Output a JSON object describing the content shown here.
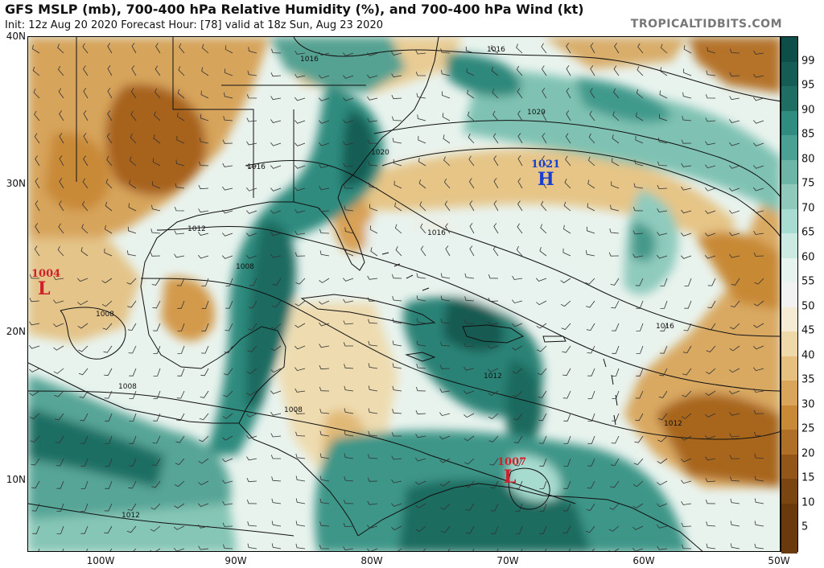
{
  "header": {
    "title": "GFS MSLP (mb), 700-400 hPa Relative Humidity (%), and 700-400 hPa Wind (kt)",
    "subtitle": "Init: 12z Aug 20 2020   Forecast Hour: [78]   valid at 18z Sun, Aug 23 2020",
    "brand": "TROPICALTIDBITS.COM"
  },
  "axes": {
    "lat_labels": [
      "40N",
      "30N",
      "20N",
      "10N"
    ],
    "lon_labels": [
      "100W",
      "90W",
      "80W",
      "70W",
      "60W",
      "50W"
    ]
  },
  "colorbar": {
    "labels": [
      "99",
      "95",
      "90",
      "85",
      "80",
      "75",
      "70",
      "65",
      "60",
      "55",
      "50",
      "45",
      "40",
      "35",
      "30",
      "25",
      "20",
      "15",
      "10",
      "5"
    ],
    "colors": {
      "moist_dark": "#0d4f48",
      "moist": "#2e8c80",
      "moist_light": "#a8dcd2",
      "neutral": "#f2f2f2",
      "dry_light": "#efd9a8",
      "dry": "#c98a38",
      "dry_dark": "#6b3a0c"
    }
  },
  "pressure_centers": [
    {
      "type": "L",
      "value": "1004",
      "color": "#d0202a"
    },
    {
      "type": "H",
      "value": "1021",
      "color": "#1a3fd0"
    },
    {
      "type": "L",
      "value": "1007",
      "color": "#d0202a"
    }
  ],
  "isobar_labels": [
    "1016",
    "1016",
    "1020",
    "1020",
    "1016",
    "1016",
    "1012",
    "1008",
    "1008",
    "1008",
    "1008",
    "1012",
    "1016",
    "1012",
    "1012"
  ]
}
